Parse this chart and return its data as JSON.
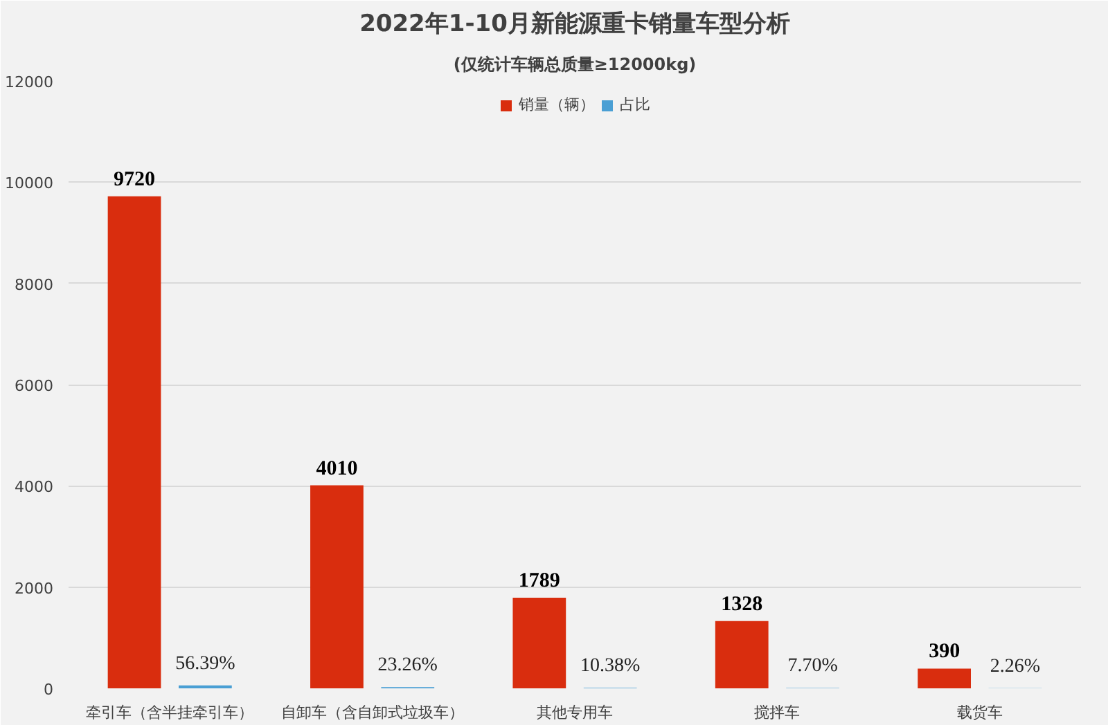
{
  "chart_data": {
    "type": "bar",
    "title": "2022年1-10月新能源重卡销量车型分析",
    "subtitle": "(仅统计车辆总质量≥12000kg)",
    "categories": [
      "牵引车（含半挂牵引车）",
      "自卸车（含自卸式垃圾车）",
      "其他专用车",
      "搅拌车",
      "载货车"
    ],
    "series": [
      {
        "name": "销量（辆）",
        "color": "#d92d0e",
        "values": [
          9720,
          4010,
          1789,
          1328,
          390
        ],
        "value_labels": [
          "9720",
          "4010",
          "1789",
          "1328",
          "390"
        ]
      },
      {
        "name": "占比",
        "color": "#4a9fd4",
        "values": [
          56.39,
          23.26,
          10.38,
          7.7,
          2.26
        ],
        "value_labels": [
          "56.39%",
          "23.26%",
          "10.38%",
          "7.70%",
          "2.26%"
        ]
      }
    ],
    "ylim": [
      0,
      12000
    ],
    "yticks": [
      0,
      2000,
      4000,
      6000,
      8000,
      10000,
      12000
    ],
    "grid": "y",
    "legend": "top"
  }
}
